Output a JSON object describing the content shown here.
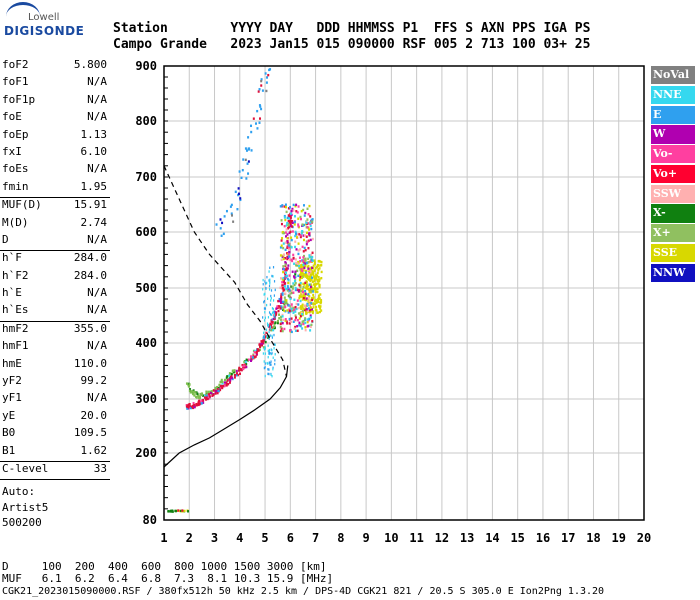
{
  "logo": {
    "top": "Lowell",
    "main": "DIGISONDE"
  },
  "header": {
    "line1": "Station        YYYY DAY   DDD HHMMSS P1  FFS S AXN PPS IGA PS",
    "line2": "Campo Grande   2023 Jan15 015 090000 RSF 005 2 713 100 03+ 25"
  },
  "scaled": [
    {
      "label": "foF2",
      "value": "5.800"
    },
    {
      "label": "foF1",
      "value": "N/A"
    },
    {
      "label": "foF1p",
      "value": "N/A"
    },
    {
      "label": "foE",
      "value": "N/A"
    },
    {
      "label": "foEp",
      "value": "1.13"
    },
    {
      "label": "fxI",
      "value": "6.10"
    },
    {
      "label": "foEs",
      "value": "N/A"
    },
    {
      "label": "fmin",
      "value": "1.95",
      "sep": true
    },
    {
      "label": "MUF(D)",
      "value": "15.91"
    },
    {
      "label": "M(D)",
      "value": "2.74"
    },
    {
      "label": "D",
      "value": "N/A",
      "sep": true
    },
    {
      "label": "h`F",
      "value": "284.0"
    },
    {
      "label": "h`F2",
      "value": "284.0"
    },
    {
      "label": "h`E",
      "value": "N/A"
    },
    {
      "label": "h`Es",
      "value": "N/A",
      "sep": true
    },
    {
      "label": "hmF2",
      "value": "355.0"
    },
    {
      "label": "hmF1",
      "value": "N/A"
    },
    {
      "label": "hmE",
      "value": "110.0"
    },
    {
      "label": "yF2",
      "value": "99.2"
    },
    {
      "label": "yF1",
      "value": "N/A"
    },
    {
      "label": "yE",
      "value": "20.0"
    },
    {
      "label": "B0",
      "value": "109.5"
    },
    {
      "label": "B1",
      "value": "1.62",
      "sep": true
    },
    {
      "label": "C-level",
      "value": "33",
      "sep": true
    }
  ],
  "auto": {
    "l1": "Auto:",
    "l2": "Artist5",
    "l3": "500200"
  },
  "legend": [
    {
      "label": "NoVal",
      "color": "#808080"
    },
    {
      "label": "NNE",
      "color": "#35d8ef"
    },
    {
      "label": "E",
      "color": "#2fa0ef"
    },
    {
      "label": "W",
      "color": "#b000b0"
    },
    {
      "label": "Vo-",
      "color": "#ff3fa0"
    },
    {
      "label": "Vo+",
      "color": "#ff0030"
    },
    {
      "label": "SSW",
      "color": "#ffb0b0"
    },
    {
      "label": "X-",
      "color": "#108010"
    },
    {
      "label": "X+",
      "color": "#90c060"
    },
    {
      "label": "SSE",
      "color": "#d8d800"
    },
    {
      "label": "NNW",
      "color": "#1010c0"
    }
  ],
  "muf_table": {
    "d_row": "D     100  200  400  600  800 1000 1500 3000 [km]",
    "muf_row": "MUF   6.1  6.2  6.4  6.8  7.3  8.1 10.3 15.9 [MHz]"
  },
  "footer": "CGK21_2023015090000.RSF / 380fx512h 50 kHz 2.5 km / DPS-4D CGK21 821 / 20.5 S 305.0 E Ion2Png 1.3.20",
  "chart_data": {
    "type": "scatter",
    "x_ticks": [
      "1",
      "2",
      "3",
      "4",
      "5",
      "6",
      "7",
      "8",
      "9",
      "10",
      "11",
      "12",
      "13",
      "14",
      "15",
      "16",
      "17",
      "18",
      "19",
      "20"
    ],
    "y_ticks": [
      "80",
      "200",
      "300",
      "400",
      "500",
      "600",
      "700",
      "800",
      "900"
    ],
    "xlim": [
      1,
      20
    ],
    "ylim": [
      80,
      900
    ],
    "grid": true,
    "o_trace": {
      "color": "#e0103a",
      "points": [
        [
          1.9,
          285
        ],
        [
          2.1,
          287
        ],
        [
          2.4,
          293
        ],
        [
          2.8,
          305
        ],
        [
          3.2,
          318
        ],
        [
          3.6,
          332
        ],
        [
          4.0,
          350
        ],
        [
          4.4,
          368
        ],
        [
          4.7,
          385
        ],
        [
          5.0,
          410
        ],
        [
          5.3,
          440
        ],
        [
          5.6,
          475
        ],
        [
          5.8,
          515
        ],
        [
          5.9,
          560
        ],
        [
          5.95,
          600
        ],
        [
          6.0,
          640
        ]
      ]
    },
    "x_trace": {
      "color": "#7fbf50",
      "points": [
        [
          1.95,
          330
        ],
        [
          2.1,
          312
        ],
        [
          2.4,
          305
        ],
        [
          2.8,
          310
        ],
        [
          3.2,
          325
        ],
        [
          3.6,
          340
        ],
        [
          4.0,
          355
        ],
        [
          4.5,
          375
        ],
        [
          5.0,
          400
        ],
        [
          5.4,
          430
        ],
        [
          5.8,
          470
        ],
        [
          6.1,
          500
        ],
        [
          6.3,
          540
        ]
      ]
    },
    "high_trace": {
      "color": "#2fa0ef",
      "points": [
        [
          3.2,
          600
        ],
        [
          3.6,
          630
        ],
        [
          4.0,
          680
        ],
        [
          4.3,
          740
        ],
        [
          4.6,
          800
        ],
        [
          4.9,
          860
        ],
        [
          5.1,
          900
        ]
      ]
    },
    "sse_cloud": {
      "color": "#d8d800",
      "center": [
        6.8,
        500
      ],
      "spread": [
        0.45,
        50
      ]
    },
    "profile": {
      "color": "#000000",
      "points": [
        [
          1.0,
          175
        ],
        [
          1.6,
          200
        ],
        [
          2.2,
          215
        ],
        [
          2.8,
          228
        ],
        [
          3.4,
          245
        ],
        [
          4.0,
          262
        ],
        [
          4.6,
          280
        ],
        [
          5.2,
          300
        ],
        [
          5.6,
          320
        ],
        [
          5.85,
          340
        ],
        [
          5.9,
          360
        ]
      ]
    },
    "dashed": {
      "color": "#000000",
      "points": [
        [
          1.0,
          720
        ],
        [
          1.6,
          660
        ],
        [
          2.2,
          600
        ],
        [
          2.8,
          560
        ],
        [
          3.4,
          530
        ],
        [
          3.8,
          510
        ],
        [
          4.3,
          470
        ],
        [
          4.8,
          440
        ],
        [
          5.3,
          400
        ],
        [
          5.7,
          370
        ],
        [
          5.85,
          340
        ]
      ]
    },
    "es_trace": {
      "color": "#108010",
      "points": [
        [
          1.15,
          95
        ],
        [
          1.4,
          96
        ],
        [
          1.7,
          96
        ],
        [
          1.95,
          96
        ]
      ]
    }
  }
}
